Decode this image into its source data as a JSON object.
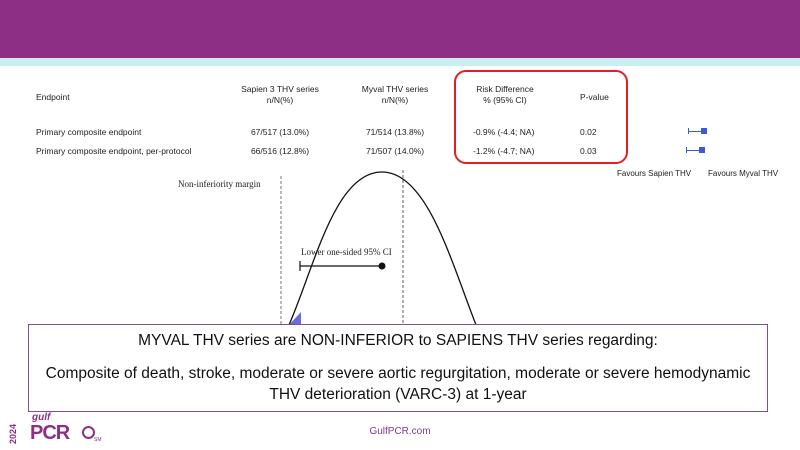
{
  "table": {
    "headers": {
      "endpoint": "Endpoint",
      "sapien_line1": "Sapien 3 THV series",
      "sapien_line2": "n/N(%)",
      "myval_line1": "Myval THV series",
      "myval_line2": "n/N(%)",
      "risk_line1": "Risk Difference",
      "risk_line2": "% (95% CI)",
      "pvalue": "P-value"
    },
    "rows": [
      {
        "endpoint": "Primary composite endpoint",
        "sapien": "67/517 (13.0%)",
        "myval": "71/514 (13.8%)",
        "risk": "-0.9% (-4.4; NA)",
        "pvalue": "0.02"
      },
      {
        "endpoint": "Primary composite endpoint, per-protocol",
        "sapien": "66/516 (12.8%)",
        "myval": "71/507 (14.0%)",
        "risk": "-1.2% (-4.7; NA)",
        "pvalue": "0.03"
      }
    ],
    "favours_left": "Favours Sapien THV",
    "favours_right": "Favours Myval THV"
  },
  "diagram": {
    "margin_label": "Non-inferiority margin",
    "ci_label": "Lower one-sided 95% CI"
  },
  "callout": {
    "line1": "MYVAL THV series are NON-INFERIOR to SAPIENS THV series regarding:",
    "line2": "Composite of death, stroke, moderate or severe aortic regurgitation, moderate or severe hemodynamic THV deterioration (VARC-3) at 1-year"
  },
  "footer": {
    "site": "GulfPCR.com"
  },
  "logo": {
    "year": "2024",
    "word1": "gulf",
    "word2": "PCR"
  },
  "colors": {
    "brand": "#8e2f86",
    "accent_bar": "#c8f0f3",
    "highlight": "#e02020",
    "ci_marker": "#3b5bd6"
  }
}
